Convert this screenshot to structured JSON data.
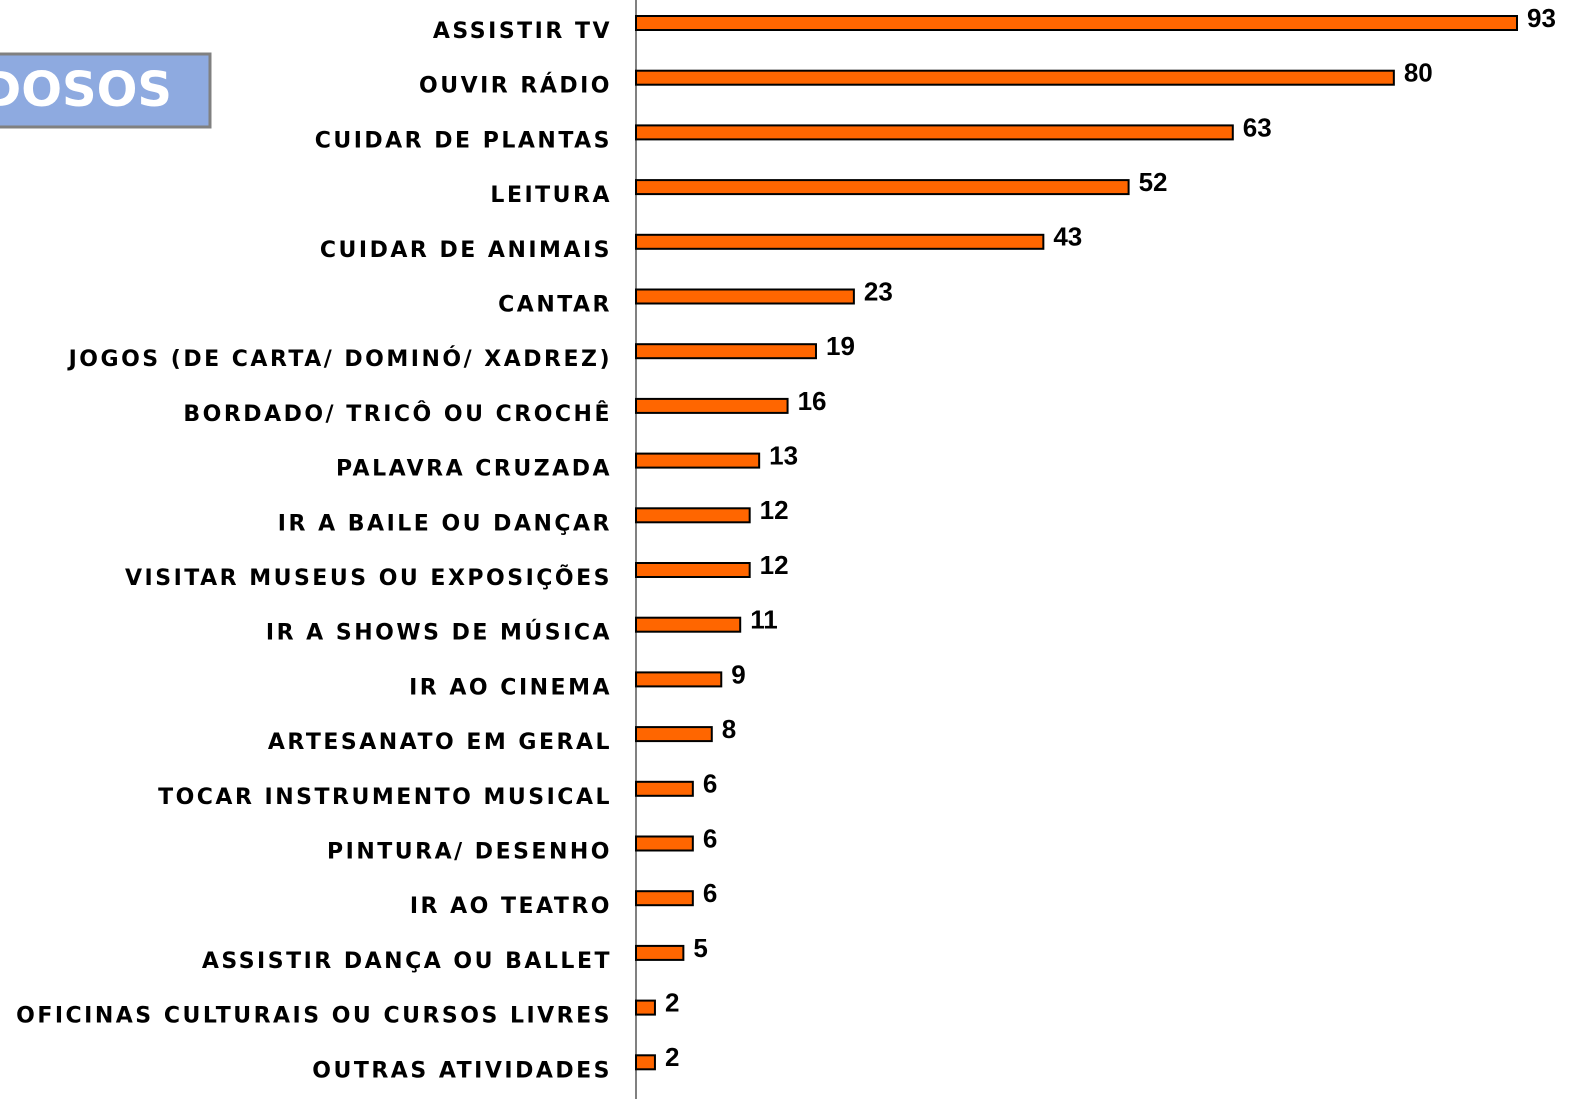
{
  "badge": "DOSOS",
  "chart_data": {
    "type": "barh",
    "categories": [
      "ASSISTIR TV",
      "OUVIR RÁDIO",
      "CUIDAR DE PLANTAS",
      "LEITURA",
      "CUIDAR DE ANIMAIS",
      "CANTAR",
      "JOGOS (DE CARTA/ DOMINÓ/ XADREZ)",
      "BORDADO/ TRICÔ OU CROCHÊ",
      "PALAVRA CRUZADA",
      "IR A BAILE OU DANÇAR",
      "VISITAR MUSEUS OU EXPOSIÇÕES",
      "IR A SHOWS DE MÚSICA",
      "IR AO CINEMA",
      "ARTESANATO EM GERAL",
      "TOCAR INSTRUMENTO MUSICAL",
      "PINTURA/ DESENHO",
      "IR AO TEATRO",
      "ASSISTIR DANÇA OU BALLET",
      "OFICINAS CULTURAIS OU CURSOS LIVRES",
      "OUTRAS ATIVIDADES"
    ],
    "values": [
      93,
      80,
      63,
      52,
      43,
      23,
      19,
      16,
      13,
      12,
      12,
      11,
      9,
      8,
      6,
      6,
      6,
      5,
      2,
      2
    ],
    "color": "#ff6600",
    "xlim": [
      0,
      93
    ]
  }
}
